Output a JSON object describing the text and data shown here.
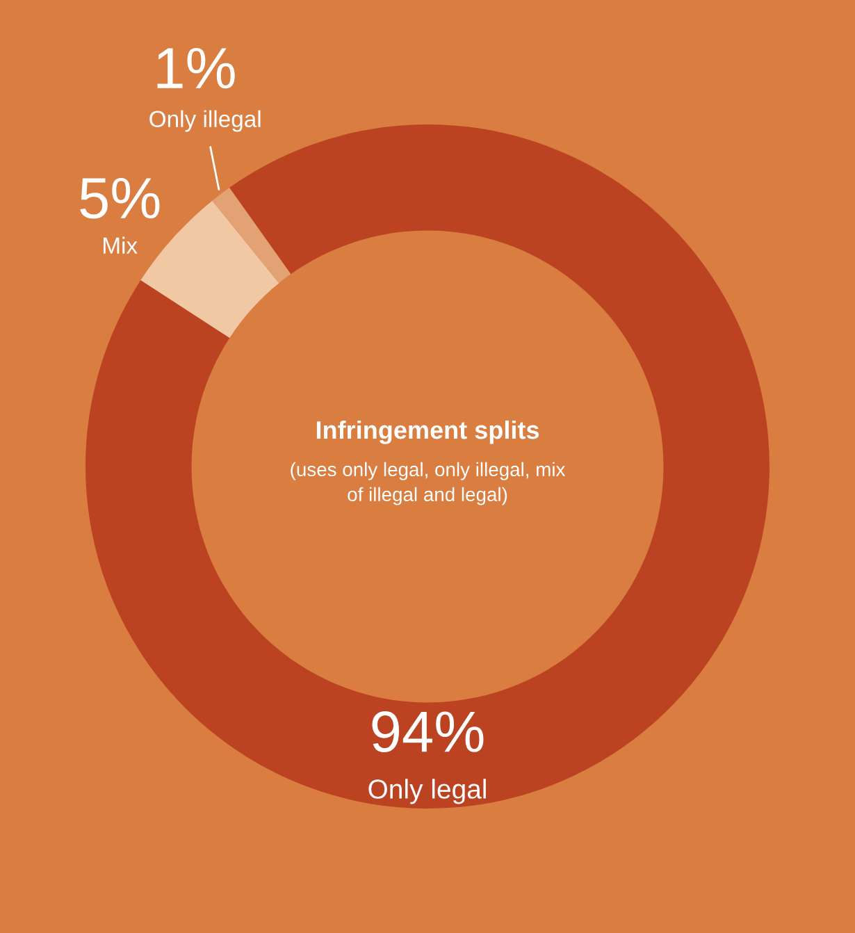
{
  "chart_data": {
    "type": "donut",
    "title": "Infringement splits",
    "subtitle": "(uses only legal, only illegal, mix\nof illegal and legal)",
    "categories": [
      "Only legal",
      "Mix",
      "Only illegal"
    ],
    "values": [
      94,
      5,
      1
    ],
    "value_labels": [
      "94%",
      "5%",
      "1%"
    ],
    "colors": [
      "#bb4322",
      "#f0c8a4",
      "#e2a274"
    ]
  }
}
